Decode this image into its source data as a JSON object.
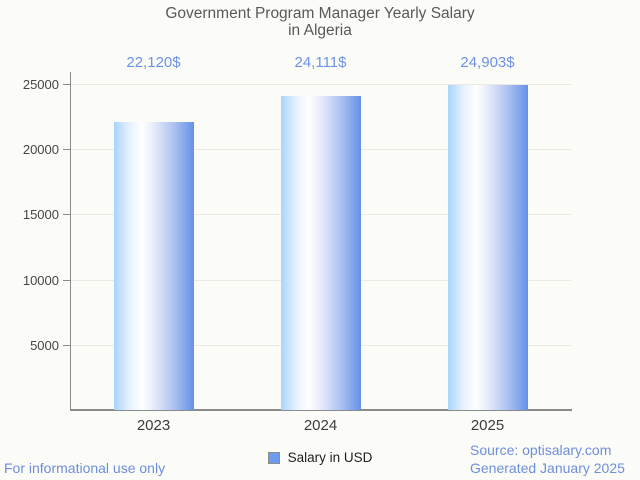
{
  "chart_data": {
    "type": "bar",
    "title": "Government Program Manager Yearly Salary\nin Algeria",
    "categories": [
      "2023",
      "2024",
      "2025"
    ],
    "values": [
      22120,
      24111,
      24903
    ],
    "value_labels": [
      "22,120$",
      "24,111$",
      "24,903$"
    ],
    "series_name": "Salary in USD",
    "xlabel": "",
    "ylabel": "",
    "ylim": [
      0,
      25000
    ],
    "yticks": [
      5000,
      10000,
      15000,
      20000,
      25000
    ],
    "grid": true,
    "legend_position": "bottom-center",
    "colors": {
      "bar_gradient_left": "#a7d4fc",
      "bar_gradient_mid": "#ffffff",
      "bar_gradient_right": "#6590e8",
      "value_label": "#6d93e6",
      "legend_swatch_fill": "#6c9ceb",
      "title": "#595959",
      "axis": "#8a8a8a",
      "gridline": "#eae9e4",
      "background": "#fbfbf7",
      "footer_text": "#6d8fdb"
    }
  },
  "footer": {
    "left_note": "For informational use only",
    "source": "Source: optisalary.com",
    "generated": "Generated January 2025"
  }
}
